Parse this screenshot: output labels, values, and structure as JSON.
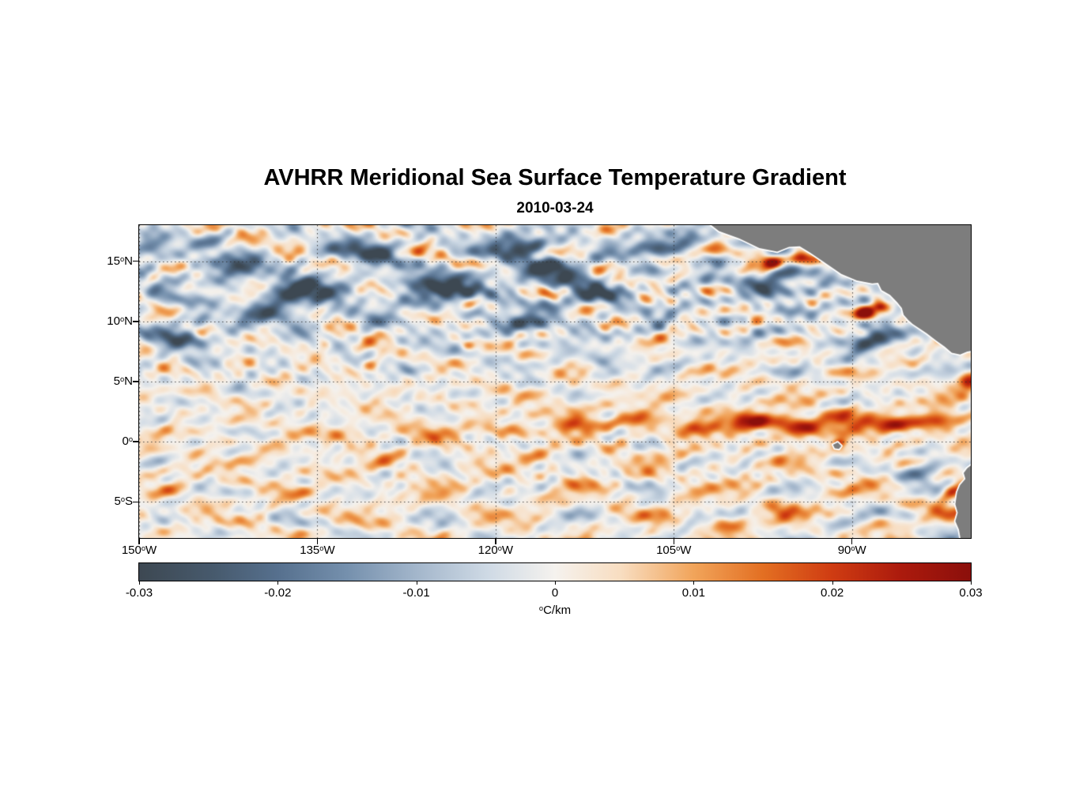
{
  "title": "AVHRR Meridional Sea Surface Temperature Gradient",
  "subtitle": "2010-03-24",
  "chart_data": {
    "type": "heatmap",
    "x_axis": {
      "min": -150,
      "max": -80,
      "tick_values": [
        -150,
        -135,
        -120,
        -105,
        -90
      ],
      "tick_labels": [
        "150°W",
        "135°W",
        "120°W",
        "105°W",
        "90°W"
      ]
    },
    "y_axis": {
      "min": -8,
      "max": 18,
      "tick_values": [
        15,
        10,
        5,
        0,
        -5
      ],
      "tick_labels": [
        "15°N",
        "10°N",
        "5°N",
        "0°",
        "5°S"
      ]
    },
    "colorbar": {
      "min": -0.03,
      "max": 0.03,
      "tick_values": [
        -0.03,
        -0.02,
        -0.01,
        0,
        0.01,
        0.02,
        0.03
      ],
      "tick_labels": [
        "-0.03",
        "-0.02",
        "-0.01",
        "0",
        "0.01",
        "0.02",
        "0.03"
      ],
      "unit": "°C/km",
      "stops": [
        [
          0.0,
          "#3d4852"
        ],
        [
          0.09,
          "#475a6d"
        ],
        [
          0.167,
          "#56708e"
        ],
        [
          0.25,
          "#7590ad"
        ],
        [
          0.333,
          "#a3b6cb"
        ],
        [
          0.42,
          "#cfdae5"
        ],
        [
          0.5,
          "#f5f2ee"
        ],
        [
          0.58,
          "#f8ddc0"
        ],
        [
          0.667,
          "#f1a45a"
        ],
        [
          0.75,
          "#e36f22"
        ],
        [
          0.833,
          "#cf3c12"
        ],
        [
          0.917,
          "#ab1a0d"
        ],
        [
          1.0,
          "#8b0f0b"
        ]
      ]
    },
    "grid": {
      "style": "dotted",
      "color": "rgba(45,45,45,0.85)"
    },
    "land": {
      "color": "#7d7d7d",
      "coast_color": "#ffffff",
      "polygons": [
        [
          [
            -102.6,
            18.6
          ],
          [
            -101.2,
            17.5
          ],
          [
            -99.5,
            16.9
          ],
          [
            -97.8,
            16.1
          ],
          [
            -96.3,
            15.8
          ],
          [
            -95.3,
            16.2
          ],
          [
            -94.4,
            16.25
          ],
          [
            -93.5,
            15.7
          ],
          [
            -92.3,
            14.9
          ],
          [
            -90.9,
            13.95
          ],
          [
            -89.6,
            13.4
          ],
          [
            -88.3,
            13.15
          ],
          [
            -87.8,
            13.2
          ],
          [
            -87.5,
            12.6
          ],
          [
            -86.8,
            12.2
          ],
          [
            -86.2,
            11.6
          ],
          [
            -85.8,
            11.1
          ],
          [
            -85.65,
            10.55
          ],
          [
            -85.25,
            10.1
          ],
          [
            -84.9,
            9.8
          ],
          [
            -84.3,
            9.4
          ],
          [
            -83.7,
            9.0
          ],
          [
            -82.9,
            8.4
          ],
          [
            -82.2,
            7.9
          ],
          [
            -81.6,
            7.4
          ],
          [
            -80.9,
            7.25
          ],
          [
            -80.3,
            7.5
          ],
          [
            -79.5,
            7.6
          ],
          [
            -79.5,
            19.0
          ],
          [
            -103.0,
            19.0
          ]
        ],
        [
          [
            -79.5,
            -1.6
          ],
          [
            -80.3,
            -2.2
          ],
          [
            -80.6,
            -2.6
          ],
          [
            -80.45,
            -3.1
          ],
          [
            -80.9,
            -3.6
          ],
          [
            -81.15,
            -4.2
          ],
          [
            -81.3,
            -5.2
          ],
          [
            -81.1,
            -5.9
          ],
          [
            -81.3,
            -6.6
          ],
          [
            -81.0,
            -7.3
          ],
          [
            -80.8,
            -8.4
          ],
          [
            -79.5,
            -8.4
          ]
        ],
        [
          [
            -91.6,
            -0.25
          ],
          [
            -91.2,
            -0.05
          ],
          [
            -90.9,
            -0.35
          ],
          [
            -91.1,
            -0.6
          ],
          [
            -91.45,
            -0.55
          ]
        ]
      ]
    },
    "field": {
      "units": "°C/km",
      "noise": {
        "seed": 7,
        "large_components": 28,
        "large_amp": 0.0011,
        "small_components": 14,
        "small_amp": 0.00065,
        "north_boost": {
          "amp": 0.8,
          "lat0": 12.5,
          "lat_sigma": 5
        }
      },
      "bias": [
        {
          "amp": -0.0035,
          "lat0": 12.5,
          "lat_sigma": 4.5
        },
        {
          "amp": 0.0022,
          "lat0": -3.0,
          "lat_sigma": 4.5
        },
        {
          "amp": 0.0015,
          "lat0": 3.0,
          "lat_sigma": 2.5,
          "lon0": -125,
          "lon_scale": 6
        }
      ],
      "features": [
        [
          -149.0,
          16.2,
          1.6,
          1.0,
          -0.018,
          0
        ],
        [
          -146.5,
          8.7,
          2.4,
          1.0,
          -0.021,
          15
        ],
        [
          -142.5,
          14.6,
          2.6,
          1.0,
          -0.02,
          -10
        ],
        [
          -136.5,
          12.4,
          3.2,
          1.1,
          -0.029,
          -15
        ],
        [
          -130.5,
          15.9,
          2.6,
          0.9,
          -0.024,
          0
        ],
        [
          -124.5,
          12.8,
          3.4,
          1.1,
          -0.028,
          -10
        ],
        [
          -118.0,
          16.3,
          2.6,
          1.0,
          -0.026,
          0
        ],
        [
          -115.5,
          14.2,
          3.0,
          1.0,
          -0.024,
          -12
        ],
        [
          -112.0,
          12.3,
          2.6,
          0.9,
          -0.021,
          -15
        ],
        [
          -107.0,
          16.3,
          2.0,
          0.8,
          -0.019,
          0
        ],
        [
          -117.5,
          9.8,
          2.6,
          0.8,
          -0.018,
          0
        ],
        [
          -138.5,
          10.4,
          3.5,
          0.7,
          -0.012,
          0
        ],
        [
          -111.0,
          6.6,
          1.2,
          0.55,
          -0.016,
          0
        ],
        [
          -127.0,
          5.9,
          1.1,
          0.5,
          -0.012,
          0
        ],
        [
          -103.5,
          17.0,
          1.5,
          0.8,
          -0.015,
          0
        ],
        [
          -96.2,
          13.4,
          2.2,
          0.9,
          -0.028,
          -20
        ],
        [
          -88.3,
          8.6,
          2.0,
          0.9,
          -0.024,
          -25
        ],
        [
          -84.0,
          -2.3,
          2.2,
          0.8,
          -0.022,
          -25
        ],
        [
          -96.8,
          14.9,
          1.1,
          0.65,
          0.034,
          0
        ],
        [
          -94.3,
          15.3,
          0.9,
          0.55,
          0.034,
          0
        ],
        [
          -88.9,
          10.6,
          1.1,
          0.6,
          0.034,
          0
        ],
        [
          -87.6,
          11.2,
          0.6,
          0.4,
          0.022,
          0
        ],
        [
          -91.0,
          -0.1,
          0.55,
          0.4,
          0.02,
          0
        ],
        [
          -113.0,
          1.4,
          2.2,
          0.7,
          0.011,
          0
        ],
        [
          -108.0,
          1.8,
          2.2,
          0.7,
          0.013,
          0
        ],
        [
          -103.0,
          1.2,
          2.2,
          0.7,
          0.016,
          0
        ],
        [
          -98.5,
          1.8,
          2.0,
          0.75,
          0.024,
          0
        ],
        [
          -94.5,
          1.2,
          2.0,
          0.75,
          0.027,
          0
        ],
        [
          -90.5,
          1.8,
          2.0,
          0.7,
          0.022,
          0
        ],
        [
          -86.5,
          1.3,
          2.0,
          0.7,
          0.021,
          0
        ],
        [
          -82.5,
          1.8,
          1.8,
          0.7,
          0.024,
          0
        ],
        [
          -125.0,
          0.8,
          4.0,
          0.6,
          0.006,
          0
        ],
        [
          -132.0,
          0.5,
          4.0,
          0.6,
          0.005,
          0
        ],
        [
          -118.0,
          1.0,
          3.0,
          0.6,
          0.008,
          0
        ],
        [
          -113.5,
          2.6,
          1.5,
          0.6,
          0.01,
          0
        ],
        [
          -134.5,
          8.1,
          0.7,
          0.5,
          0.015,
          0
        ],
        [
          -130.4,
          6.4,
          0.8,
          0.5,
          0.014,
          0
        ],
        [
          -122.3,
          8.0,
          0.6,
          0.4,
          0.012,
          0
        ],
        [
          -100.5,
          -6.8,
          1.8,
          0.7,
          0.013,
          10
        ],
        [
          -96.0,
          -5.6,
          1.5,
          0.6,
          0.01,
          0
        ],
        [
          -81.6,
          -4.1,
          1.2,
          0.6,
          0.022,
          -30
        ],
        [
          -80.2,
          -4.8,
          0.6,
          0.5,
          0.03,
          0
        ],
        [
          -80.3,
          4.9,
          0.8,
          0.7,
          0.022,
          0
        ]
      ]
    }
  }
}
